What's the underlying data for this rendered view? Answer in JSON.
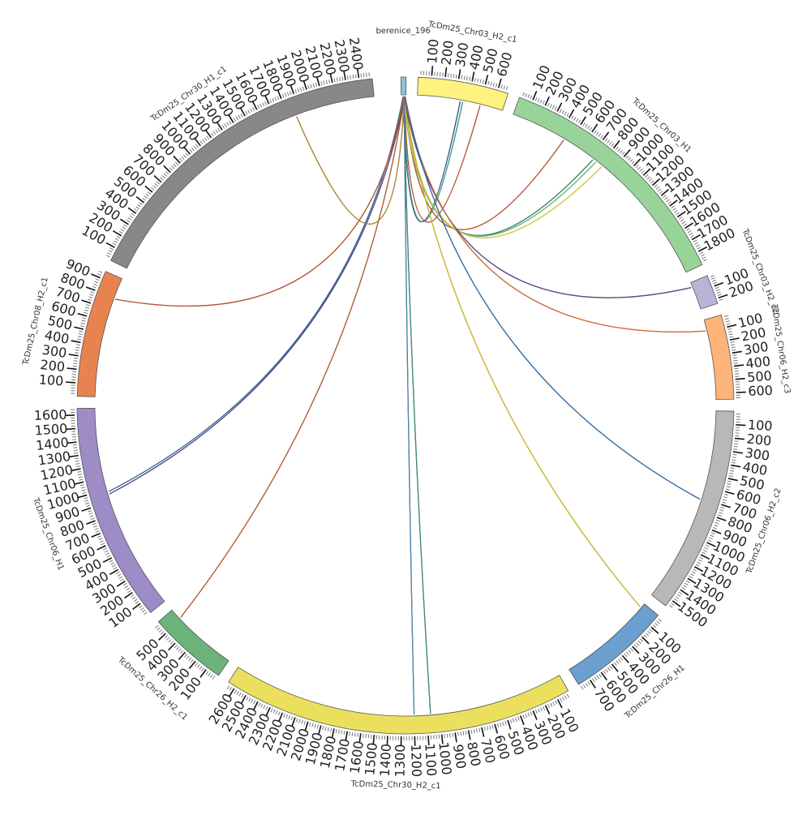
{
  "chart_data": {
    "type": "chord",
    "title": "",
    "segments": [
      {
        "name": "berenice_196",
        "length": 10,
        "color": "#8ec1e0"
      },
      {
        "name": "TcDm25_Chr03_H2_c1",
        "length": 680,
        "color": "#fff27e"
      },
      {
        "name": "TcDm25_Chr03_H1",
        "length": 1900,
        "color": "#98d49a"
      },
      {
        "name": "TcDm25_Chr03_H2_c2",
        "length": 240,
        "color": "#b9b3d8"
      },
      {
        "name": "TcDm25_Chr06_H2_c3",
        "length": 650,
        "color": "#fdb47a"
      },
      {
        "name": "TcDm25_Chr06_H2_c2",
        "length": 1560,
        "color": "#b8b8b8"
      },
      {
        "name": "TcDm25_Chr26_H1",
        "length": 790,
        "color": "#6a9fd0"
      },
      {
        "name": "TcDm25_Chr30_H2_c1",
        "length": 2660,
        "color": "#ebe05e"
      },
      {
        "name": "TcDm25_Chr26_H2_c1",
        "length": 600,
        "color": "#6bb37a"
      },
      {
        "name": "TcDm25_Chr06_H1",
        "length": 1650,
        "color": "#9d8cc6"
      },
      {
        "name": "TcDm25_Chr08_H2_c1",
        "length": 960,
        "color": "#e8834f"
      },
      {
        "name": "TcDm25_Chr30_H1_c1",
        "length": 2500,
        "color": "#888888"
      }
    ],
    "links": [
      {
        "from": "berenice_196",
        "to": "TcDm25_Chr03_H2_c1",
        "to_pos": 340,
        "color": "#2b5a8a"
      },
      {
        "from": "berenice_196",
        "to": "TcDm25_Chr03_H2_c1",
        "to_pos": 360,
        "color": "#3a9e8f"
      },
      {
        "from": "berenice_196",
        "to": "TcDm25_Chr03_H2_c1",
        "to_pos": 500,
        "color": "#c0532a"
      },
      {
        "from": "berenice_196",
        "to": "TcDm25_Chr03_H1",
        "to_pos": 450,
        "color": "#c0532a"
      },
      {
        "from": "berenice_196",
        "to": "TcDm25_Chr03_H1",
        "to_pos": 730,
        "color": "#2e8b57"
      },
      {
        "from": "berenice_196",
        "to": "TcDm25_Chr03_H1",
        "to_pos": 760,
        "color": "#6fbf8c"
      },
      {
        "from": "berenice_196",
        "to": "TcDm25_Chr03_H1",
        "to_pos": 820,
        "color": "#e8d33a"
      },
      {
        "from": "berenice_196",
        "to": "TcDm25_Chr03_H2_c2",
        "to_pos": 40,
        "color": "#5a4a8a"
      },
      {
        "from": "berenice_196",
        "to": "TcDm25_Chr06_H2_c3",
        "to_pos": 90,
        "color": "#e07030"
      },
      {
        "from": "berenice_196",
        "to": "TcDm25_Chr06_H2_c2",
        "to_pos": 710,
        "color": "#2f6ea8"
      },
      {
        "from": "berenice_196",
        "to": "TcDm25_Chr26_H1",
        "to_pos": 40,
        "color": "#d4c020"
      },
      {
        "from": "berenice_196",
        "to": "TcDm25_Chr30_H2_c1",
        "to_pos": 1070,
        "color": "#3a8f70"
      },
      {
        "from": "berenice_196",
        "to": "TcDm25_Chr30_H2_c1",
        "to_pos": 1200,
        "color": "#4a86b0"
      },
      {
        "from": "berenice_196",
        "to": "TcDm25_Chr26_H2_c1",
        "to_pos": 510,
        "color": "#c05a2a"
      },
      {
        "from": "berenice_196",
        "to": "TcDm25_Chr06_H1",
        "to_pos": 960,
        "color": "#5a4a8a"
      },
      {
        "from": "berenice_196",
        "to": "TcDm25_Chr06_H1",
        "to_pos": 980,
        "color": "#2f6ea8"
      },
      {
        "from": "berenice_196",
        "to": "TcDm25_Chr08_H2_c1",
        "to_pos": 790,
        "color": "#c0532a"
      },
      {
        "from": "berenice_196",
        "to": "TcDm25_Chr30_H1_c1",
        "to_pos": 1860,
        "color": "#b08a2a"
      }
    ],
    "legend": "none",
    "grid": false
  }
}
